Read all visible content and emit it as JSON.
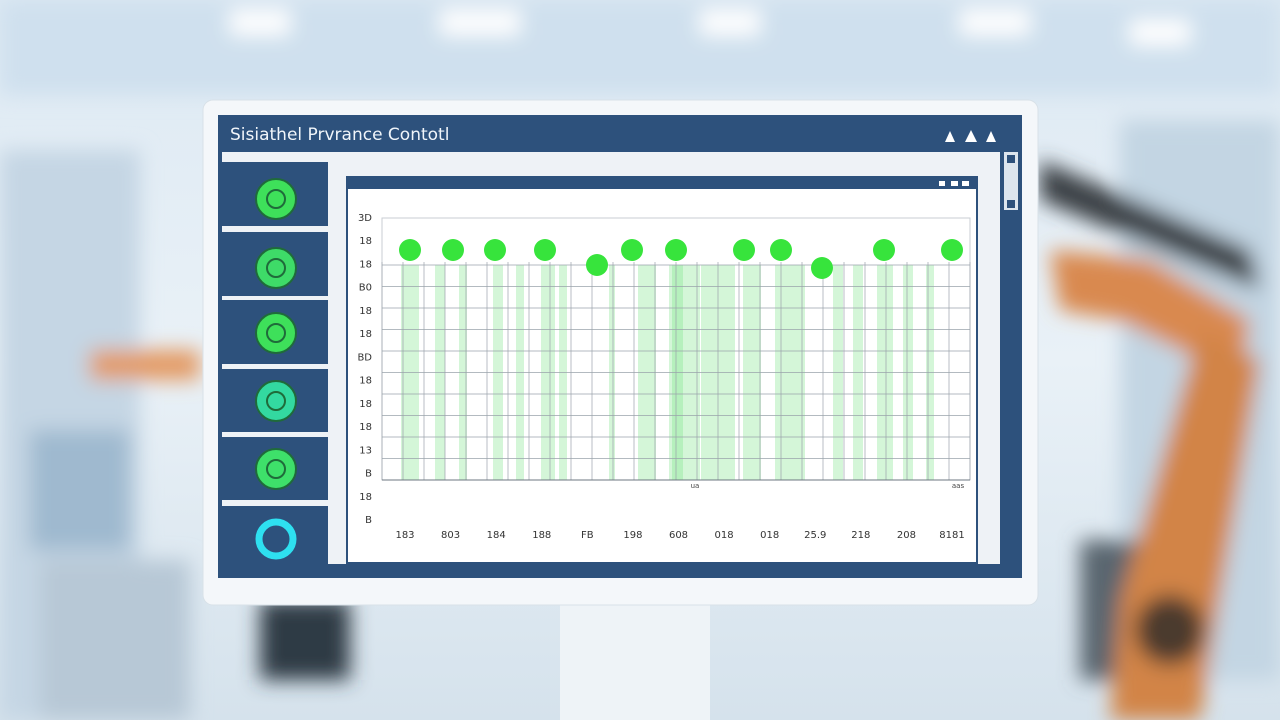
{
  "window": {
    "title": "Sisiathel Prvrance Contotl"
  },
  "chart": {
    "y_labels": [
      "3D",
      "18",
      "18",
      "B0",
      "18",
      "18",
      "BD",
      "18",
      "18",
      "18",
      "13",
      "B",
      "18",
      "B"
    ],
    "x_labels": [
      "183",
      "803",
      "184",
      "188",
      "FB",
      "198",
      "608",
      "018",
      "018",
      "25.9",
      "218",
      "208",
      "8181"
    ],
    "axis_notes": [
      "ua",
      "aas"
    ]
  }
}
